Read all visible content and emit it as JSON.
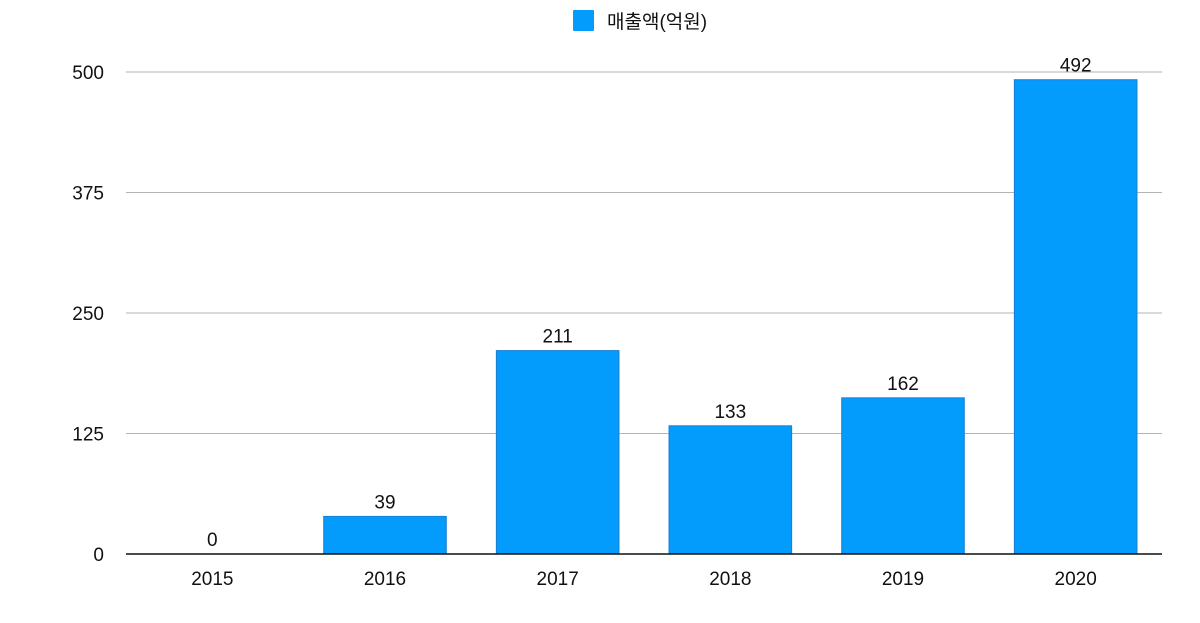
{
  "chart_data": {
    "type": "bar",
    "categories": [
      "2015",
      "2016",
      "2017",
      "2018",
      "2019",
      "2020"
    ],
    "series": [
      {
        "name": "매출액(억원)",
        "values": [
          0,
          39,
          211,
          133,
          162,
          492
        ],
        "color": "#039cfd"
      }
    ],
    "data_labels": [
      "0",
      "39",
      "211",
      "133",
      "162",
      "492"
    ],
    "y_ticks": [
      "0",
      "125",
      "250",
      "375",
      "500"
    ],
    "ylim": [
      0,
      500
    ],
    "legend_position": "top-center",
    "grid": true
  }
}
